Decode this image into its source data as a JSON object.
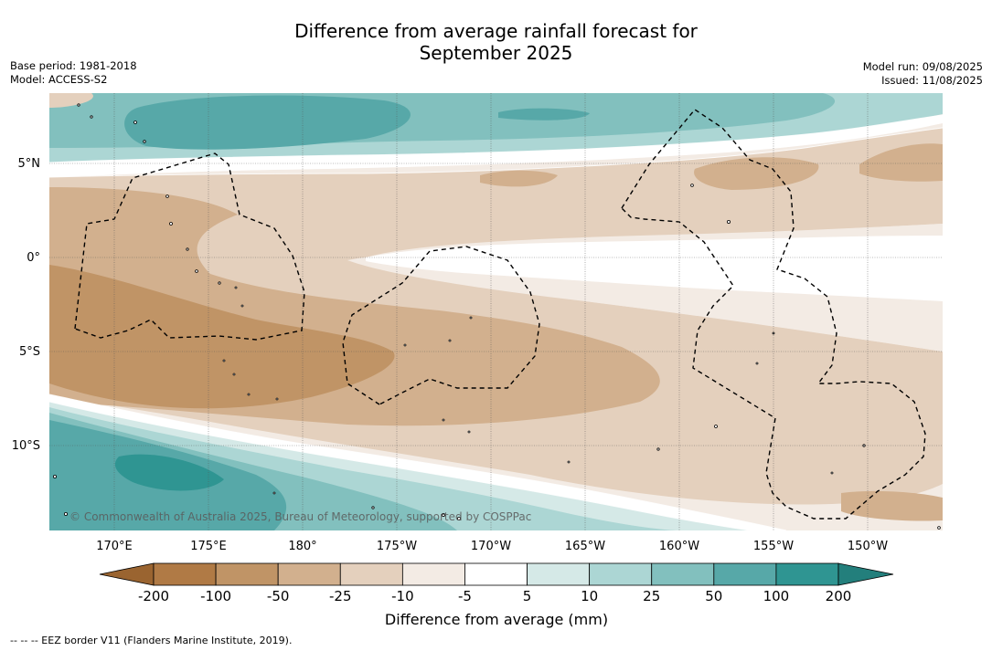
{
  "title_line1": "Difference from average rainfall forecast for",
  "title_line2": "September 2025",
  "base_period": "Base period: 1981-2018",
  "model": "Model: ACCESS-S2",
  "model_run": "Model run: 09/08/2025",
  "issued": "Issued: 11/08/2025",
  "copyright": "© Commonwealth of Australia 2025, Bureau of Meteorology, supported by COSPPac",
  "lat_labels": [
    "5°N",
    "0°",
    "5°S",
    "10°S"
  ],
  "lon_labels": [
    "170°E",
    "175°E",
    "180°",
    "175°W",
    "170°W",
    "165°W",
    "160°W",
    "155°W",
    "150°W"
  ],
  "legend": {
    "title": "Difference from average (mm)",
    "ticks": [
      "-200",
      "-100",
      "-50",
      "-25",
      "-10",
      "-5",
      "5",
      "10",
      "25",
      "50",
      "100",
      "200"
    ],
    "colors": {
      "below_min": "#9a6430",
      "bins": [
        "#b07a45",
        "#c09466",
        "#d2b08e",
        "#e4d0bd",
        "#f3ebe4",
        "#ffffff",
        "#d5e9e7",
        "#acd6d4",
        "#82c0be",
        "#57a8a8",
        "#2f9592"
      ],
      "above_max": "#237f7c"
    }
  },
  "footnote": "--  --  -- EEZ border V11 (Flanders Marine Institute, 2019)."
}
